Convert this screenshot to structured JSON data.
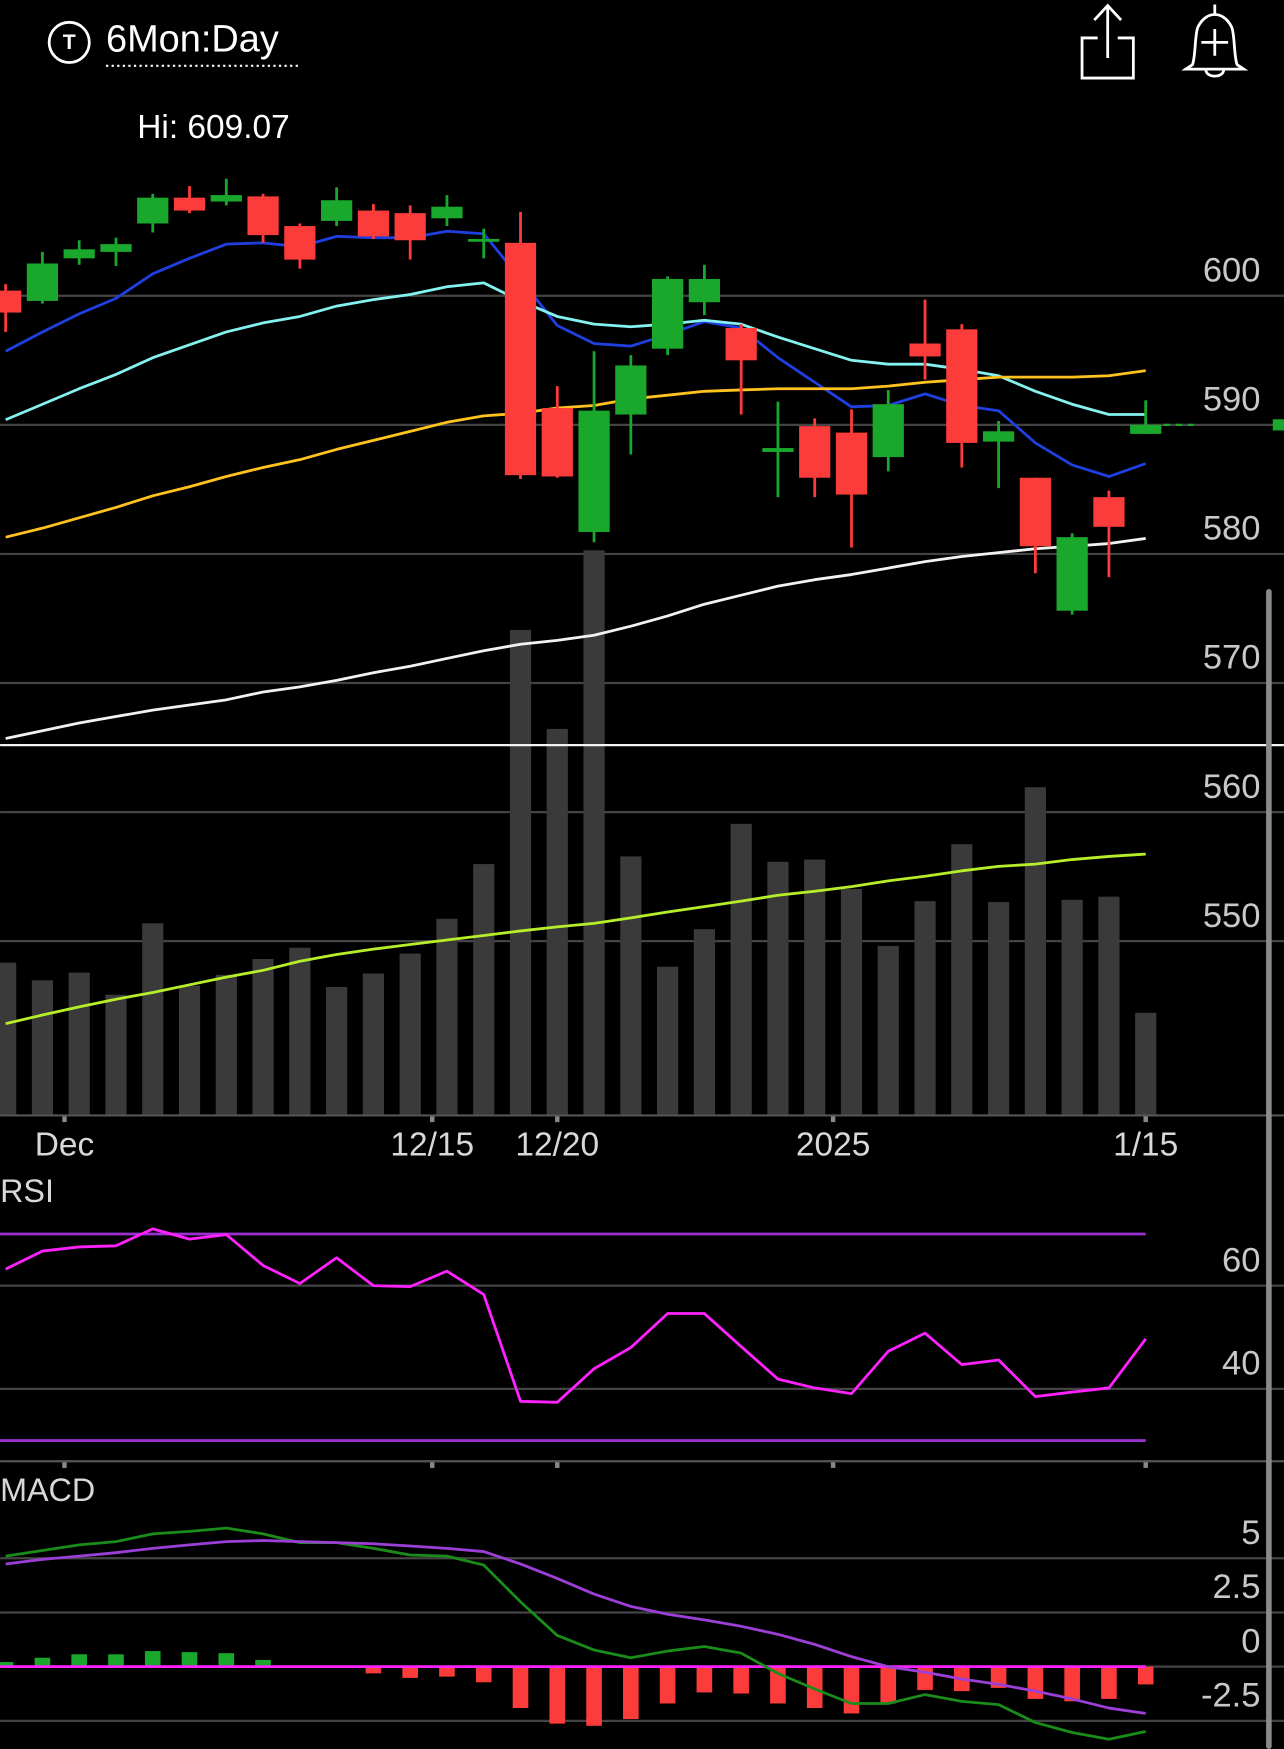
{
  "header": {
    "icon_label": "T",
    "title": "6Mon:Day"
  },
  "chart_data": [
    {
      "type": "candlestick",
      "annotation": "Hi: 609.07",
      "categories": [
        null,
        null,
        null,
        null,
        null,
        null,
        null,
        null,
        null,
        null,
        null,
        null,
        null,
        null,
        null,
        null,
        null,
        null,
        null,
        null,
        null,
        null,
        null,
        null,
        null,
        null,
        null,
        null,
        null,
        null,
        null,
        null
      ],
      "open": [
        600.4,
        599.6,
        602.9,
        603.4,
        605.6,
        607.6,
        607.3,
        607.7,
        605.4,
        605.8,
        606.6,
        606.4,
        606.0,
        604.2,
        604.1,
        591.3,
        581.7,
        590.8,
        595.9,
        599.5,
        597.5,
        587.9,
        589.9,
        589.4,
        587.5,
        596.3,
        597.4,
        588.7,
        585.9,
        575.6,
        584.4,
        589.3
      ],
      "high": [
        600.9,
        603.4,
        604.3,
        604.5,
        607.9,
        608.5,
        609.07,
        607.9,
        605.6,
        608.4,
        607.1,
        607.0,
        607.8,
        605.2,
        606.5,
        593.0,
        595.7,
        595.4,
        601.5,
        602.4,
        597.8,
        591.8,
        590.5,
        591.2,
        592.7,
        599.7,
        597.8,
        590.3,
        585.9,
        581.6,
        584.9,
        591.9
      ],
      "low": [
        597.2,
        599.4,
        602.4,
        602.3,
        604.9,
        606.4,
        607.0,
        604.1,
        602.1,
        605.4,
        604.4,
        602.8,
        605.4,
        602.9,
        585.8,
        585.9,
        580.9,
        587.7,
        595.4,
        598.5,
        590.8,
        584.4,
        584.4,
        580.5,
        586.4,
        593.5,
        586.7,
        585.1,
        578.5,
        575.3,
        578.2,
        589.3
      ],
      "close": [
        598.7,
        602.5,
        603.6,
        604.0,
        607.6,
        606.6,
        607.8,
        604.7,
        602.8,
        607.4,
        604.6,
        604.3,
        606.9,
        604.4,
        586.1,
        586.0,
        591.1,
        594.6,
        601.3,
        601.3,
        595.0,
        588.2,
        585.9,
        584.6,
        591.6,
        595.3,
        588.6,
        589.5,
        580.6,
        581.3,
        582.1,
        590.0
      ],
      "up_color": "#1aa82c",
      "down_color": "#fc3b3b",
      "ylim": [
        536.5,
        616
      ],
      "yticks": [
        550,
        560,
        570,
        580,
        590,
        600
      ],
      "grid": true,
      "xticks": [
        {
          "value": 1.6,
          "label": "Dec"
        },
        {
          "value": 11.6,
          "label": "12/15"
        },
        {
          "value": 15,
          "label": "12/20"
        },
        {
          "value": 22.5,
          "label": "2025"
        },
        {
          "value": 31,
          "label": "1/15"
        }
      ],
      "moving_averages": [
        {
          "color": "#1f3fe0",
          "values": [
            595.7,
            597.2,
            598.6,
            599.8,
            601.7,
            602.9,
            604.0,
            604.1,
            603.8,
            604.6,
            604.5,
            604.5,
            605.0,
            604.8,
            601.3,
            597.7,
            596.3,
            596.1,
            597.0,
            598.0,
            597.5,
            595.2,
            593.3,
            591.4,
            591.5,
            592.4,
            591.5,
            591.1,
            588.6,
            586.9,
            586.0,
            587.0
          ]
        },
        {
          "color": "#84f2f0",
          "values": [
            590.4,
            591.6,
            592.8,
            593.9,
            595.2,
            596.2,
            597.2,
            597.9,
            598.4,
            599.2,
            599.7,
            600.1,
            600.7,
            601.0,
            599.6,
            598.4,
            597.8,
            597.6,
            597.8,
            598.1,
            597.8,
            596.8,
            595.9,
            595.0,
            594.7,
            594.7,
            594.3,
            593.8,
            592.6,
            591.6,
            590.8,
            590.8
          ]
        },
        {
          "color": "#ffc21f",
          "values": [
            581.3,
            582.0,
            582.8,
            583.6,
            584.5,
            585.2,
            586.0,
            586.7,
            587.3,
            588.1,
            588.8,
            589.5,
            590.2,
            590.7,
            590.9,
            591.3,
            591.5,
            592.0,
            592.3,
            592.6,
            592.7,
            592.8,
            592.8,
            592.8,
            593.0,
            593.3,
            593.5,
            593.7,
            593.7,
            593.7,
            593.8,
            594.2
          ]
        },
        {
          "color": "#f2f2f2",
          "values": [
            565.7,
            566.3,
            566.9,
            567.4,
            567.9,
            568.3,
            568.7,
            569.3,
            569.7,
            570.2,
            570.8,
            571.3,
            571.9,
            572.5,
            573.0,
            573.3,
            573.7,
            574.4,
            575.2,
            576.1,
            576.8,
            577.5,
            578.0,
            578.4,
            578.9,
            579.4,
            579.8,
            580.1,
            580.4,
            580.6,
            580.8,
            581.2
          ]
        }
      ],
      "volume": {
        "color": "#3a3a3a",
        "ylim": [
          0,
          227
        ],
        "values": [
          33.8,
          29.9,
          31.6,
          26.7,
          42.5,
          28.7,
          31.1,
          34.6,
          37.1,
          28.4,
          31.4,
          35.8,
          43.5,
          55.6,
          107.4,
          85.5,
          125.0,
          57.3,
          32.9,
          41.2,
          64.5,
          56.1,
          56.6,
          50.1,
          37.5,
          47.4,
          60.0,
          47.2,
          72.6,
          47.7,
          48.4,
          22.7
        ],
        "average": {
          "color": "#b6ef2a",
          "values": [
            20.3,
            22.2,
            24.0,
            25.7,
            27.2,
            28.9,
            30.6,
            32.1,
            34.1,
            35.6,
            36.8,
            37.8,
            38.8,
            39.8,
            40.8,
            41.7,
            42.5,
            43.7,
            45.0,
            46.2,
            47.4,
            48.7,
            49.6,
            50.6,
            51.9,
            52.9,
            54.1,
            55.1,
            55.6,
            56.6,
            57.3,
            57.8
          ]
        }
      }
    },
    {
      "type": "line",
      "title": "RSI",
      "ylim": [
        26,
        80
      ],
      "yticks": [
        40,
        60
      ],
      "grid": true,
      "levels": [
        30,
        70
      ],
      "level_color": "#9b30d0",
      "series": [
        {
          "color": "#ff22ff",
          "values": [
            63.2,
            66.7,
            67.5,
            67.7,
            71.0,
            69.0,
            69.9,
            63.9,
            60.4,
            65.4,
            60.0,
            59.8,
            62.8,
            58.3,
            37.6,
            37.4,
            43.9,
            48.0,
            54.6,
            54.6,
            48.2,
            41.9,
            40.2,
            39.1,
            47.3,
            50.8,
            44.7,
            45.6,
            38.5,
            39.4,
            40.2,
            49.7
          ]
        }
      ]
    },
    {
      "type": "macd",
      "title": "MACD",
      "ylim": [
        -3.8,
        8.45
      ],
      "yticks": [
        -2.5,
        0,
        2.5,
        5
      ],
      "grid": true,
      "zero_line_color": "#ff22ff",
      "series": [
        {
          "color": "#1a8c1a",
          "values": [
            5.1,
            5.36,
            5.62,
            5.77,
            6.13,
            6.24,
            6.39,
            6.13,
            5.72,
            5.72,
            5.46,
            5.15,
            5.1,
            4.69,
            2.99,
            1.44,
            0.77,
            0.41,
            0.72,
            0.93,
            0.62,
            -0.31,
            -1.03,
            -1.7,
            -1.7,
            -1.29,
            -1.6,
            -1.75,
            -2.58,
            -3.04,
            -3.35,
            -2.99
          ]
        },
        {
          "color": "#9b3fd6",
          "values": [
            4.74,
            4.95,
            5.1,
            5.26,
            5.46,
            5.62,
            5.77,
            5.82,
            5.77,
            5.72,
            5.67,
            5.57,
            5.46,
            5.31,
            4.74,
            4.07,
            3.35,
            2.78,
            2.42,
            2.16,
            1.86,
            1.49,
            1.03,
            0.46,
            0,
            -0.26,
            -0.57,
            -0.82,
            -1.13,
            -1.49,
            -1.91,
            -2.16
          ]
        }
      ],
      "histogram": {
        "up_color": "#1aa82c",
        "down_color": "#fc3b3b",
        "values": [
          0.21,
          0.41,
          0.57,
          0.57,
          0.72,
          0.67,
          0.62,
          0.31,
          0,
          0,
          -0.31,
          -0.52,
          -0.46,
          -0.72,
          -1.91,
          -2.63,
          -2.73,
          -2.42,
          -1.7,
          -1.19,
          -1.24,
          -1.7,
          -1.91,
          -2.16,
          -1.7,
          -1.08,
          -1.13,
          -0.98,
          -1.49,
          -1.6,
          -1.49,
          -0.82
        ]
      }
    }
  ]
}
